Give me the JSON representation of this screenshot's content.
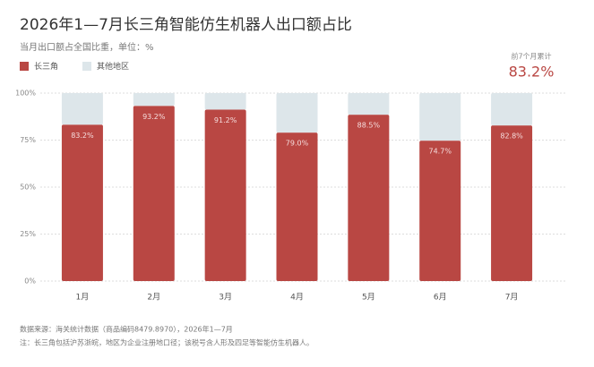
{
  "chart_data": {
    "type": "stacked_bar",
    "title": "2026年1—7月长三角智能仿生机器人出口额占比",
    "subtitle": "当月出口额占全国比重，单位：%",
    "categories": [
      "1月",
      "2月",
      "3月",
      "4月",
      "5月",
      "6月",
      "7月"
    ],
    "series": [
      {
        "name": "长三角",
        "color": "#b94743",
        "values": [
          83.2,
          93.2,
          91.2,
          79.0,
          88.5,
          74.7,
          82.8
        ],
        "value_labels": [
          "83.2%",
          "93.2%",
          "91.2%",
          "79.0%",
          "88.5%",
          "74.7%",
          "82.8%"
        ]
      },
      {
        "name": "其他地区",
        "color": "#dde6ea",
        "values": [
          16.8,
          6.8,
          8.8,
          21.0,
          11.5,
          25.3,
          17.2
        ]
      }
    ],
    "ylim": [
      0,
      100
    ],
    "yticks": [
      {
        "value": 0,
        "label": "0%"
      },
      {
        "value": 25,
        "label": "25%"
      },
      {
        "value": 50,
        "label": "50%"
      },
      {
        "value": 75,
        "label": "75%"
      },
      {
        "value": 100,
        "label": "100%"
      }
    ],
    "grid": true,
    "legend": "top-left",
    "annotation": {
      "label": "前7个月累计",
      "value_label": "83.2%"
    },
    "source": "数据来源：海关统计数据（商品编码8479.8970），2026年1—7月",
    "note": "注：长三角包括沪苏浙皖，地区为企业注册地口径；该税号含人形及四足等智能仿生机器人。"
  }
}
